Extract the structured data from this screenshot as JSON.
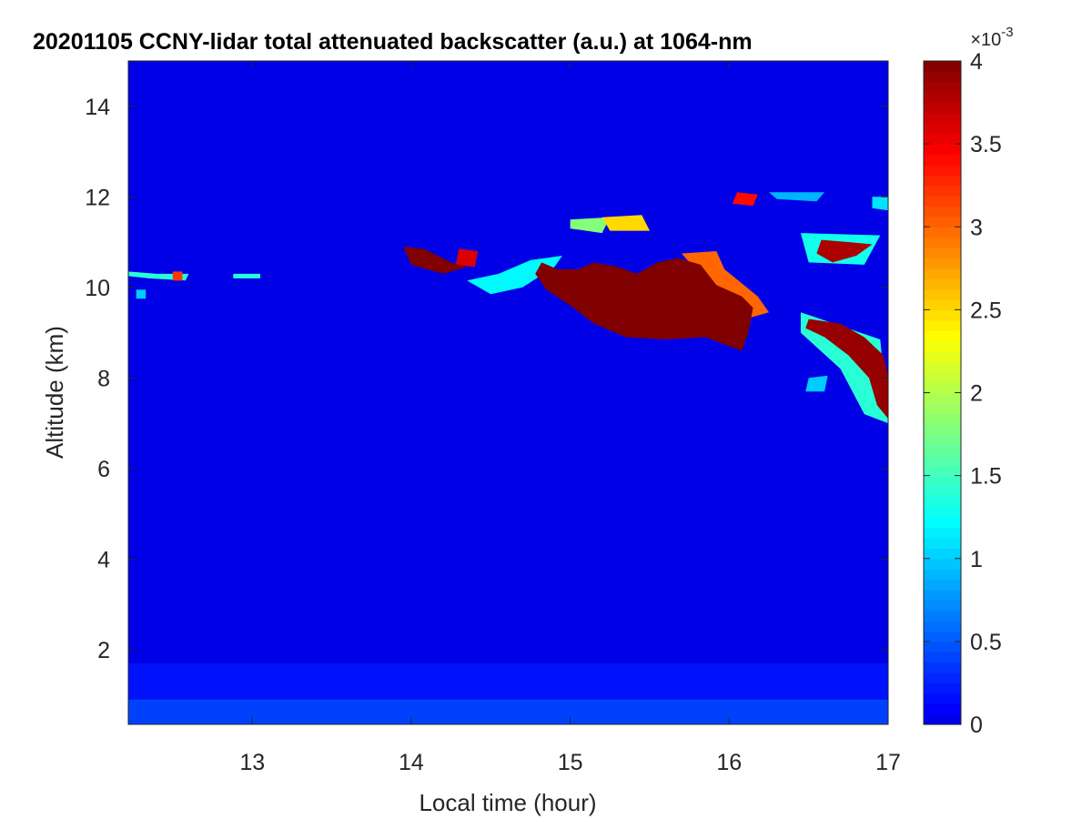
{
  "chart_data": {
    "type": "heatmap",
    "title": "20201105 CCNY-lidar total attenuated backscatter (a.u.) at 1064-nm",
    "xlabel": "Local time (hour)",
    "ylabel": "Altitude (km)",
    "xlim": [
      12.22,
      17.0
    ],
    "ylim": [
      0.35,
      15.0
    ],
    "xticks": [
      13,
      14,
      15,
      16,
      17
    ],
    "yticks": [
      2,
      4,
      6,
      8,
      10,
      12,
      14
    ],
    "colorbar": {
      "colormap": "jet",
      "clim": [
        0,
        0.004
      ],
      "ticks": [
        0,
        0.5,
        1,
        1.5,
        2,
        2.5,
        3,
        3.5,
        4
      ],
      "tick_labels": [
        "0",
        "0.5",
        "1",
        "1.5",
        "2",
        "2.5",
        "3",
        "3.5",
        "4"
      ],
      "multiplier": "×10",
      "exponent": "-3"
    },
    "background": {
      "upper_value": 0.0,
      "boundary_layer": [
        {
          "alt_top": 0.9,
          "value": 0.45
        },
        {
          "alt_top": 1.7,
          "value": 0.2
        }
      ]
    },
    "features": [
      {
        "name": "main cirrus core",
        "value": 4.0,
        "polygon": [
          [
            14.82,
            10.55
          ],
          [
            14.92,
            10.4
          ],
          [
            15.05,
            10.4
          ],
          [
            15.15,
            10.55
          ],
          [
            15.3,
            10.45
          ],
          [
            15.42,
            10.3
          ],
          [
            15.55,
            10.55
          ],
          [
            15.68,
            10.65
          ],
          [
            15.82,
            10.5
          ],
          [
            15.92,
            10.05
          ],
          [
            16.08,
            9.8
          ],
          [
            16.15,
            9.55
          ],
          [
            16.12,
            9.0
          ],
          [
            16.08,
            8.6
          ],
          [
            15.85,
            8.9
          ],
          [
            15.6,
            8.85
          ],
          [
            15.35,
            8.9
          ],
          [
            15.15,
            9.2
          ],
          [
            15.0,
            9.6
          ],
          [
            14.85,
            9.95
          ],
          [
            14.78,
            10.3
          ]
        ]
      },
      {
        "name": "cloud edge",
        "value": 3.0,
        "polygon": [
          [
            15.7,
            10.75
          ],
          [
            15.92,
            10.8
          ],
          [
            15.97,
            10.4
          ],
          [
            16.18,
            9.8
          ],
          [
            16.25,
            9.45
          ],
          [
            16.1,
            9.3
          ],
          [
            15.95,
            9.7
          ],
          [
            15.8,
            10.35
          ]
        ]
      },
      {
        "name": "thin cirrus tail",
        "value": 1.2,
        "polygon": [
          [
            14.35,
            10.15
          ],
          [
            14.55,
            10.3
          ],
          [
            14.75,
            10.6
          ],
          [
            14.95,
            10.7
          ],
          [
            14.9,
            10.45
          ],
          [
            14.7,
            10.0
          ],
          [
            14.5,
            9.85
          ]
        ]
      },
      {
        "name": "small cell 14.0",
        "value": 4.0,
        "polygon": [
          [
            13.95,
            10.9
          ],
          [
            14.08,
            10.85
          ],
          [
            14.25,
            10.55
          ],
          [
            14.35,
            10.45
          ],
          [
            14.2,
            10.3
          ],
          [
            14.0,
            10.5
          ]
        ]
      },
      {
        "name": "small cell 14.3",
        "value": 3.6,
        "polygon": [
          [
            14.3,
            10.85
          ],
          [
            14.42,
            10.8
          ],
          [
            14.4,
            10.45
          ],
          [
            14.28,
            10.5
          ]
        ]
      },
      {
        "name": "cirrus at 11.4",
        "value": 2.5,
        "polygon": [
          [
            15.2,
            11.55
          ],
          [
            15.45,
            11.6
          ],
          [
            15.5,
            11.25
          ],
          [
            15.25,
            11.25
          ]
        ]
      },
      {
        "name": "upper patch",
        "value": 1.8,
        "polygon": [
          [
            15.0,
            11.5
          ],
          [
            15.25,
            11.55
          ],
          [
            15.2,
            11.2
          ],
          [
            15.0,
            11.3
          ]
        ]
      },
      {
        "name": "cirrus at 12",
        "value": 3.4,
        "polygon": [
          [
            16.05,
            12.1
          ],
          [
            16.18,
            12.05
          ],
          [
            16.15,
            11.8
          ],
          [
            16.02,
            11.85
          ]
        ]
      },
      {
        "name": "thin 12 strip",
        "value": 0.9,
        "polygon": [
          [
            16.25,
            12.1
          ],
          [
            16.6,
            12.1
          ],
          [
            16.55,
            11.9
          ],
          [
            16.3,
            11.95
          ]
        ]
      },
      {
        "name": "right cirrus 11",
        "value": 3.8,
        "polygon": [
          [
            16.58,
            11.05
          ],
          [
            16.75,
            11.0
          ],
          [
            16.9,
            10.95
          ],
          [
            16.8,
            10.7
          ],
          [
            16.65,
            10.55
          ],
          [
            16.55,
            10.75
          ]
        ]
      },
      {
        "name": "right fringe 11",
        "value": 1.3,
        "polygon": [
          [
            16.45,
            11.2
          ],
          [
            16.95,
            11.15
          ],
          [
            16.85,
            10.5
          ],
          [
            16.5,
            10.55
          ]
        ]
      },
      {
        "name": "descending cirrus",
        "value": 3.9,
        "polygon": [
          [
            16.5,
            9.3
          ],
          [
            16.7,
            9.2
          ],
          [
            16.85,
            8.9
          ],
          [
            16.97,
            8.5
          ],
          [
            17.0,
            8.0
          ],
          [
            17.0,
            7.1
          ],
          [
            16.93,
            7.4
          ],
          [
            16.88,
            8.0
          ],
          [
            16.75,
            8.5
          ],
          [
            16.6,
            8.9
          ],
          [
            16.48,
            9.1
          ]
        ]
      },
      {
        "name": "descending fringe",
        "value": 1.4,
        "polygon": [
          [
            16.45,
            9.45
          ],
          [
            16.95,
            8.85
          ],
          [
            17.0,
            7.0
          ],
          [
            16.85,
            7.2
          ],
          [
            16.7,
            8.2
          ],
          [
            16.45,
            9.0
          ]
        ]
      },
      {
        "name": "faint patch 8",
        "value": 1.0,
        "polygon": [
          [
            16.5,
            8.0
          ],
          [
            16.62,
            8.05
          ],
          [
            16.6,
            7.7
          ],
          [
            16.48,
            7.7
          ]
        ]
      },
      {
        "name": "thin layer 12.5",
        "value": 1.4,
        "polygon": [
          [
            12.22,
            10.35
          ],
          [
            12.4,
            10.3
          ],
          [
            12.6,
            10.3
          ],
          [
            12.58,
            10.15
          ],
          [
            12.35,
            10.2
          ],
          [
            12.22,
            10.25
          ]
        ]
      },
      {
        "name": "dot 12.5",
        "value": 3.2,
        "polygon": [
          [
            12.5,
            10.35
          ],
          [
            12.56,
            10.35
          ],
          [
            12.56,
            10.15
          ],
          [
            12.5,
            10.15
          ]
        ]
      },
      {
        "name": "dot 12.9",
        "value": 1.4,
        "polygon": [
          [
            12.88,
            10.3
          ],
          [
            13.05,
            10.3
          ],
          [
            13.05,
            10.2
          ],
          [
            12.88,
            10.2
          ]
        ]
      },
      {
        "name": "dot 12.3",
        "value": 1.0,
        "polygon": [
          [
            12.27,
            9.95
          ],
          [
            12.33,
            9.95
          ],
          [
            12.33,
            9.75
          ],
          [
            12.27,
            9.75
          ]
        ]
      },
      {
        "name": "top right wisp",
        "value": 1.1,
        "polygon": [
          [
            16.9,
            12.0
          ],
          [
            17.0,
            12.0
          ],
          [
            17.0,
            11.7
          ],
          [
            16.9,
            11.75
          ]
        ]
      }
    ]
  }
}
